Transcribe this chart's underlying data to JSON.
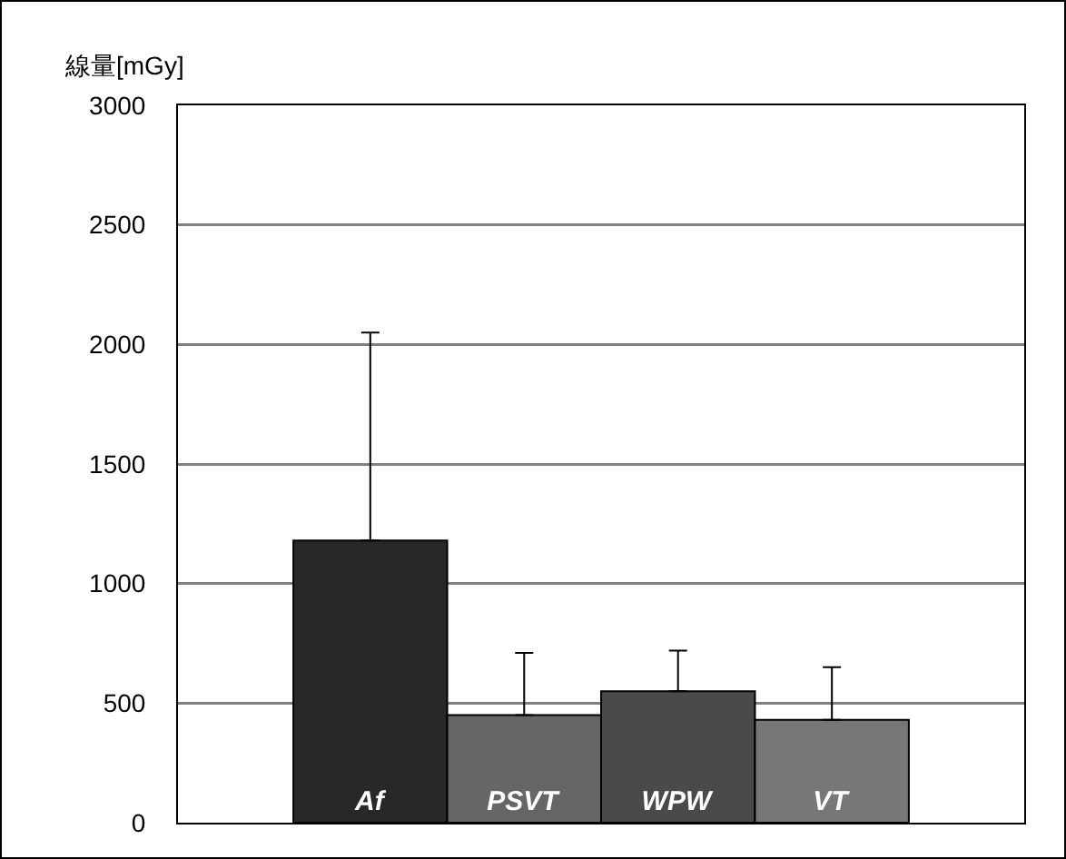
{
  "chart_data": {
    "type": "bar",
    "ylabel": "線量[mGy]",
    "categories": [
      "Af",
      "PSVT",
      "WPW",
      "VT"
    ],
    "values": [
      1180,
      450,
      550,
      430
    ],
    "colors": [
      "#282828",
      "#666666",
      "#4a4a4a",
      "#777777"
    ],
    "errors": [
      [
        1180,
        2050
      ],
      [
        450,
        710
      ],
      [
        550,
        720
      ],
      [
        430,
        650
      ]
    ],
    "ylim": [
      0,
      3000
    ],
    "yticks": [
      0,
      500,
      1000,
      1500,
      2000,
      2500,
      3000
    ],
    "grid": "y",
    "tick_labels": "y"
  }
}
